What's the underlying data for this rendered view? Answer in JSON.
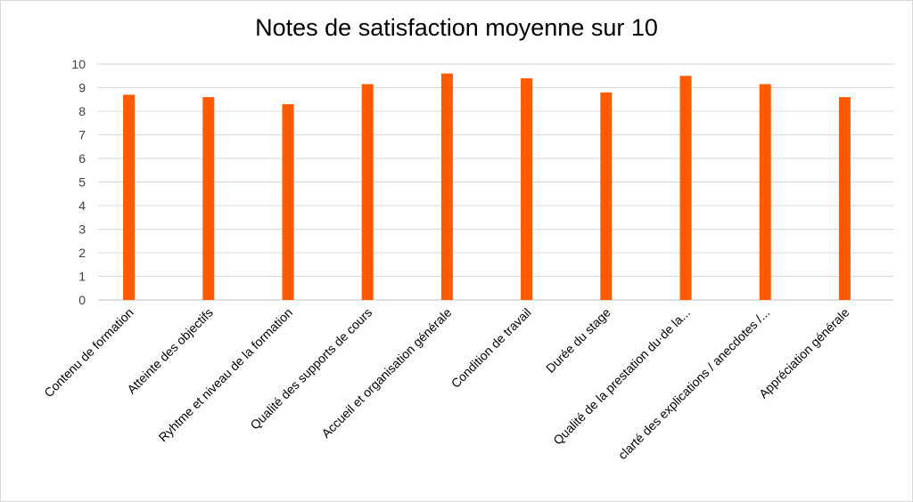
{
  "chart_data": {
    "type": "bar",
    "title": "Notes de satisfaction moyenne sur 10",
    "xlabel": "",
    "ylabel": "",
    "ylim": [
      0,
      10
    ],
    "yticks": [
      "0",
      "1",
      "2",
      "3",
      "4",
      "5",
      "6",
      "7",
      "8",
      "9",
      "10"
    ],
    "grid": true,
    "legend": "none",
    "bar_color": "#ff5a00",
    "categories": [
      "Contenu de formation",
      "Atteinte des objectifs",
      "Ryhtme et niveau de la formation",
      "Qualité des supports de cours",
      "Accueil et organisation générale",
      "Condition de travail",
      "Durée du stage",
      "Qualité de la prestation du·de la...",
      "clarté des explications / anecdotes /...",
      "Appréciation générale"
    ],
    "values": [
      8.7,
      8.6,
      8.3,
      9.15,
      9.6,
      9.4,
      8.8,
      9.5,
      9.15,
      8.6
    ]
  }
}
